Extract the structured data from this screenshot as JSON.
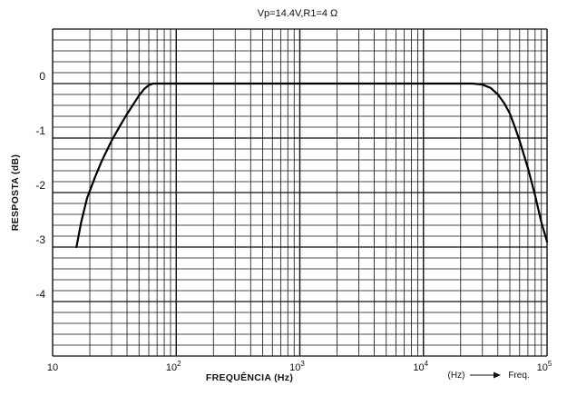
{
  "chart_data": {
    "type": "line",
    "title": "Vp=14.4V,R1=4 Ω",
    "xlabel": "FREQUÊNCIA (Hz)",
    "ylabel": "RESPOSTA (dB)",
    "x_scale": "log",
    "xlim": [
      10,
      100000
    ],
    "ylim": [
      -5,
      1
    ],
    "grid": true,
    "x_ticks": [
      {
        "base": "10",
        "exp": ""
      },
      {
        "base": "10",
        "exp": "2"
      },
      {
        "base": "10",
        "exp": "3"
      },
      {
        "base": "10",
        "exp": "4"
      },
      {
        "base": "10",
        "exp": "5"
      }
    ],
    "y_ticks": [
      "0",
      "-1",
      "-2",
      "-3",
      "-4"
    ],
    "annotation": {
      "unit": "(Hz)",
      "arrow_label": "Freq."
    },
    "series": [
      {
        "x": [
          15.6,
          17,
          19,
          22,
          25,
          30,
          35,
          40,
          45,
          50,
          55,
          60,
          65,
          70,
          80,
          100,
          1000,
          10000,
          25000,
          30000,
          35000,
          40000,
          45000,
          50000,
          55000,
          60000,
          70000,
          80000,
          90000,
          100000
        ],
        "y": [
          -3.0,
          -2.55,
          -2.1,
          -1.72,
          -1.42,
          -1.05,
          -0.78,
          -0.56,
          -0.38,
          -0.22,
          -0.1,
          -0.03,
          0.0,
          0.0,
          0.0,
          0.0,
          0.0,
          0.0,
          0.0,
          -0.02,
          -0.08,
          -0.2,
          -0.36,
          -0.55,
          -0.8,
          -1.05,
          -1.55,
          -2.05,
          -2.55,
          -2.9
        ]
      }
    ]
  }
}
